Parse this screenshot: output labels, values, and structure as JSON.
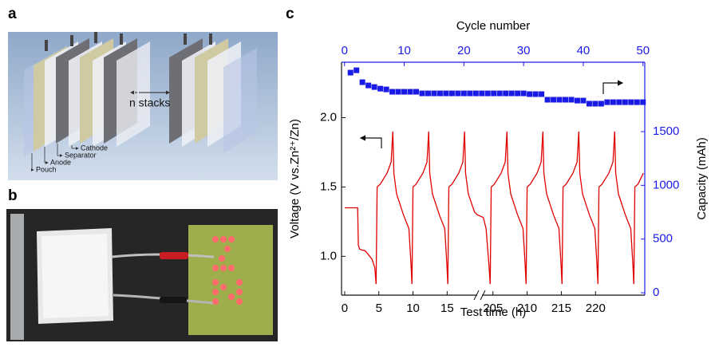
{
  "panels": {
    "a": {
      "label": "a",
      "annotations": [
        "Cathode",
        "Separator",
        "Anode",
        "Pouch"
      ],
      "stack_text": "n stacks"
    },
    "b": {
      "label": "b"
    },
    "c": {
      "label": "c"
    }
  },
  "chart_data": {
    "type": "line",
    "xlabel": "Test time (h)",
    "ylabel": "Voltage (V vs.Zn²⁺/Zn)",
    "y2label": "Capacity (mAh)",
    "x2label": "Cycle number",
    "xlim": [
      [
        -0.46,
        19.4
      ],
      [
        203.4,
        227.2
      ]
    ],
    "xticks": [
      0,
      5,
      10,
      15,
      205,
      210,
      215,
      220
    ],
    "x2lim": [
      -0.5,
      50.3
    ],
    "x2ticks": [
      0,
      10,
      20,
      30,
      40,
      50
    ],
    "ylim": [
      0.72,
      2.4
    ],
    "yticks": [
      {
        "value": 1,
        "label": "1.0"
      },
      1.5,
      {
        "value": 2,
        "label": "2.0"
      }
    ],
    "y2lim": [
      -22,
      2146
    ],
    "y2ticks": [
      0,
      500,
      1000,
      1500
    ],
    "series": [
      {
        "color": "#e00000",
        "x": [
          0,
          1.9,
          2.0,
          2.2,
          3,
          4,
          4.4,
          4.6,
          4.75,
          5.2,
          6.2,
          6.8,
          7.05,
          7.2,
          7.6,
          8.6,
          9.4,
          9.7,
          9.85,
          10.0,
          10.45,
          11.45,
          12.05,
          12.3,
          12.45,
          12.85,
          13.85,
          14.65,
          14.95,
          15.1,
          15.25,
          15.7,
          16.7,
          17.3,
          17.55,
          17.7,
          18.1,
          19.0,
          19.4,
          203.6,
          204.0,
          204.4,
          204.6,
          204.75,
          205.2,
          206.2,
          206.8,
          207.05,
          207.2,
          207.6,
          208.6,
          209.4,
          209.7,
          209.85,
          210.0,
          210.45,
          211.45,
          212.05,
          212.3,
          212.45,
          212.85,
          213.85,
          214.65,
          214.95,
          215.1,
          215.25,
          215.7,
          216.7,
          217.3,
          217.55,
          217.7,
          218.1,
          219.1,
          219.9,
          220.2,
          220.35,
          220.5,
          220.95,
          221.95,
          222.55,
          222.8,
          222.95,
          223.35,
          224.35,
          225.15,
          225.45,
          225.6,
          225.75,
          226.2,
          227.0
        ],
        "values": [
          1.35,
          1.35,
          1.08,
          1.05,
          1.04,
          0.98,
          0.92,
          0.8,
          1.5,
          1.52,
          1.6,
          1.68,
          1.9,
          1.6,
          1.45,
          1.3,
          1.2,
          0.95,
          0.8,
          1.5,
          1.52,
          1.6,
          1.68,
          1.9,
          1.6,
          1.45,
          1.3,
          1.2,
          0.95,
          0.8,
          1.5,
          1.52,
          1.6,
          1.68,
          1.9,
          1.6,
          1.45,
          1.32,
          1.3,
          1.28,
          1.2,
          0.95,
          0.8,
          1.5,
          1.52,
          1.6,
          1.68,
          1.9,
          1.6,
          1.45,
          1.3,
          1.2,
          0.95,
          0.8,
          1.5,
          1.52,
          1.6,
          1.68,
          1.9,
          1.6,
          1.45,
          1.3,
          1.2,
          0.95,
          0.8,
          1.5,
          1.52,
          1.6,
          1.68,
          1.9,
          1.6,
          1.45,
          1.3,
          1.2,
          0.95,
          0.8,
          1.5,
          1.52,
          1.6,
          1.68,
          1.9,
          1.6,
          1.45,
          1.3,
          1.2,
          0.95,
          0.8,
          1.5,
          1.52,
          1.6
        ]
      },
      {
        "color": "#1a1ae6",
        "axis": "y2",
        "xaxis": "x2",
        "marker": "square",
        "x": [
          1,
          2,
          3,
          4,
          5,
          6,
          7,
          8,
          9,
          10,
          11,
          12,
          13,
          14,
          15,
          16,
          17,
          18,
          19,
          20,
          21,
          22,
          23,
          24,
          25,
          26,
          27,
          28,
          29,
          30,
          31,
          32,
          33,
          34,
          35,
          36,
          37,
          38,
          39,
          40,
          41,
          42,
          43,
          44,
          45,
          46,
          47,
          48,
          49,
          50
        ],
        "values": [
          2049,
          2071,
          1960,
          1930,
          1915,
          1900,
          1893,
          1871,
          1871,
          1871,
          1871,
          1871,
          1856,
          1856,
          1856,
          1856,
          1856,
          1856,
          1856,
          1856,
          1856,
          1856,
          1856,
          1856,
          1856,
          1856,
          1856,
          1856,
          1856,
          1856,
          1849,
          1849,
          1849,
          1797,
          1797,
          1797,
          1797,
          1797,
          1789,
          1789,
          1760,
          1760,
          1760,
          1774,
          1774,
          1774,
          1774,
          1774,
          1774,
          1774
        ]
      }
    ]
  }
}
